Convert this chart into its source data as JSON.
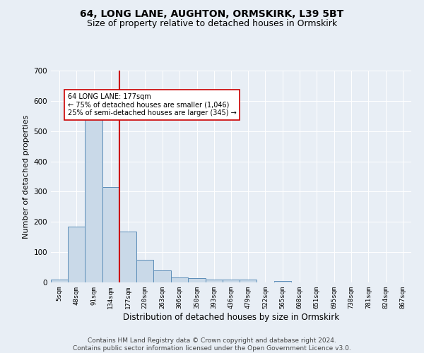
{
  "title": "64, LONG LANE, AUGHTON, ORMSKIRK, L39 5BT",
  "subtitle": "Size of property relative to detached houses in Ormskirk",
  "xlabel": "Distribution of detached houses by size in Ormskirk",
  "ylabel": "Number of detached properties",
  "bin_edges": [
    5,
    48,
    91,
    134,
    177,
    220,
    263,
    306,
    350,
    393,
    436,
    479,
    522,
    565,
    608,
    651,
    695,
    738,
    781,
    824,
    867
  ],
  "bar_heights": [
    10,
    185,
    545,
    315,
    168,
    75,
    40,
    17,
    15,
    10,
    10,
    10,
    0,
    5,
    0,
    0,
    0,
    0,
    0,
    0
  ],
  "bar_color": "#c9d9e8",
  "bar_edge_color": "#5b8db8",
  "property_line_x": 177,
  "property_line_color": "#cc0000",
  "ylim": [
    0,
    700
  ],
  "yticks": [
    0,
    100,
    200,
    300,
    400,
    500,
    600,
    700
  ],
  "annotation_text": "64 LONG LANE: 177sqm\n← 75% of detached houses are smaller (1,046)\n25% of semi-detached houses are larger (345) →",
  "annotation_box_color": "#ffffff",
  "annotation_box_edge": "#cc0000",
  "footer_line1": "Contains HM Land Registry data © Crown copyright and database right 2024.",
  "footer_line2": "Contains public sector information licensed under the Open Government Licence v3.0.",
  "background_color": "#e8eef5",
  "plot_bg_color": "#e8eef5",
  "title_fontsize": 10,
  "subtitle_fontsize": 9,
  "tick_label_fontsize": 6.5,
  "ylabel_fontsize": 8,
  "xlabel_fontsize": 8.5,
  "footer_fontsize": 6.5,
  "annotation_fontsize": 7
}
